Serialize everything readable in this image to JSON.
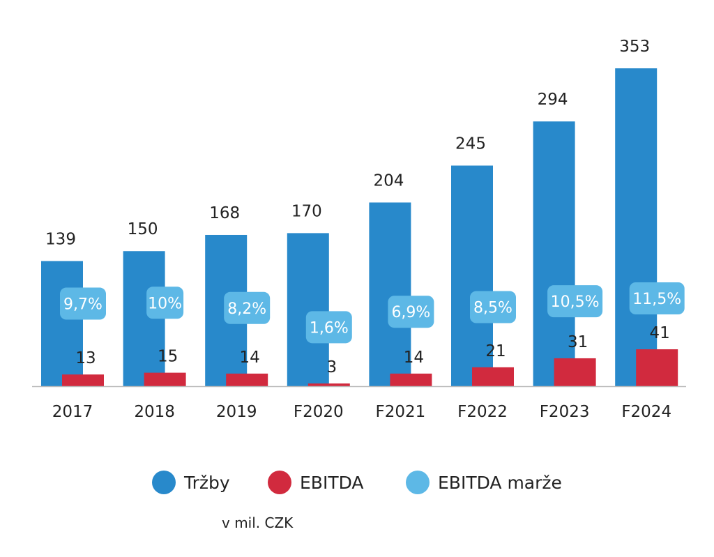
{
  "chart_data": {
    "type": "bar",
    "categories": [
      "2017",
      "2018",
      "2019",
      "F2020",
      "F2021",
      "F2022",
      "F2023",
      "F2024"
    ],
    "series": [
      {
        "name": "Tržby",
        "color": "#2889cb",
        "values": [
          139,
          150,
          168,
          170,
          204,
          245,
          294,
          353
        ],
        "labels": [
          "139",
          "150",
          "168",
          "170",
          "204",
          "245",
          "294",
          "353"
        ]
      },
      {
        "name": "EBITDA",
        "color": "#d12a3e",
        "values": [
          13,
          15,
          14,
          3,
          14,
          21,
          31,
          41
        ],
        "labels": [
          "13",
          "15",
          "14",
          "3",
          "14",
          "21",
          "31",
          "41"
        ]
      }
    ],
    "margin": {
      "name": "EBITDA marže",
      "color": "#5db8e6",
      "values": [
        9.7,
        10,
        8.2,
        1.6,
        6.9,
        8.5,
        10.5,
        11.5
      ],
      "labels": [
        "9,7%",
        "10%",
        "8,2%",
        "1,6%",
        "6,9%",
        "8,5%",
        "10,5%",
        "11,5%"
      ]
    },
    "ylim": [
      0,
      353
    ],
    "grid": false,
    "legend_position": "bottom",
    "unit_note": "v mil. CZK"
  }
}
